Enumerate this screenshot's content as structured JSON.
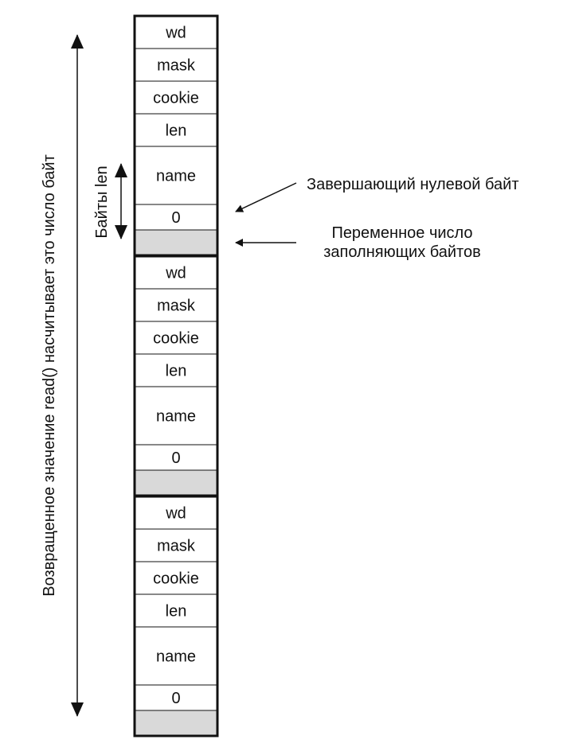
{
  "record_blocks": [
    {
      "fields": {
        "wd": "wd",
        "mask": "mask",
        "cookie": "cookie",
        "len": "len",
        "name": "name",
        "zero": "0"
      }
    },
    {
      "fields": {
        "wd": "wd",
        "mask": "mask",
        "cookie": "cookie",
        "len": "len",
        "name": "name",
        "zero": "0"
      }
    },
    {
      "fields": {
        "wd": "wd",
        "mask": "mask",
        "cookie": "cookie",
        "len": "len",
        "name": "name",
        "zero": "0"
      }
    }
  ],
  "labels": {
    "total_bytes": "Возвращенное значение read() насчитывает это число байт",
    "len_bytes": "Байты len",
    "null_byte": "Завершающий нулевой байт",
    "padding_line1": "Переменное число",
    "padding_line2": "заполняющих байтов"
  },
  "colors": {
    "line": "#111111",
    "padding_fill": "#d9d9d9",
    "background": "#ffffff"
  }
}
